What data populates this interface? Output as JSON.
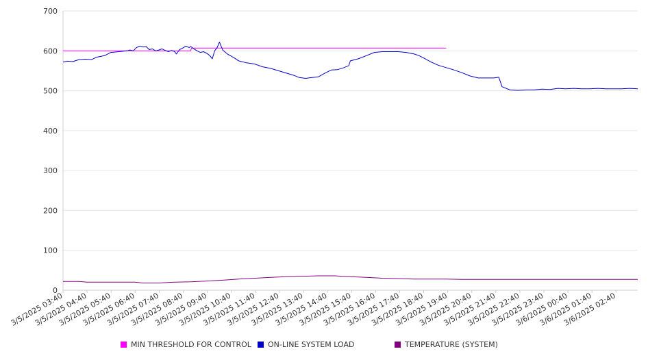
{
  "chart_data": {
    "type": "line",
    "title": "",
    "xlabel": "",
    "ylabel": "",
    "ylim": [
      0,
      700
    ],
    "yticks": [
      0,
      100,
      200,
      300,
      400,
      500,
      600,
      700
    ],
    "grid": true,
    "legend_position": "bottom",
    "x_tick_labels": [
      "3/5/2025 03:40",
      "3/5/2025 04:40",
      "3/5/2025 05:40",
      "3/5/2025 06:40",
      "3/5/2025 07:40",
      "3/5/2025 08:40",
      "3/5/2025 09:40",
      "3/5/2025 10:40",
      "3/5/2025 11:40",
      "3/5/2025 12:40",
      "3/5/2025 13:40",
      "3/5/2025 14:40",
      "3/5/2025 15:40",
      "3/5/2025 16:40",
      "3/5/2025 17:40",
      "3/5/2025 18:40",
      "3/5/2025 19:40",
      "3/5/2025 20:40",
      "3/5/2025 21:40",
      "3/5/2025 22:40",
      "3/5/2025 23:40",
      "3/6/2025 00:40",
      "3/6/2025 01:40",
      "3/6/2025 02:40"
    ],
    "series": [
      {
        "name": "MIN THRESHOLD FOR CONTROL",
        "color": "#ff00ff",
        "points": [
          [
            0,
            600
          ],
          [
            8,
            600
          ],
          [
            8.05,
            607
          ],
          [
            24,
            607
          ]
        ]
      },
      {
        "name": "ON-LINE SYSTEM LOAD",
        "color": "#0000cc",
        "points": [
          [
            0,
            572
          ],
          [
            0.3,
            574
          ],
          [
            0.6,
            573
          ],
          [
            1,
            578
          ],
          [
            1.4,
            579
          ],
          [
            1.8,
            578
          ],
          [
            2.1,
            584
          ],
          [
            2.6,
            588
          ],
          [
            3,
            596
          ],
          [
            3.5,
            598
          ],
          [
            4,
            600
          ],
          [
            4.2,
            602
          ],
          [
            4.4,
            600
          ],
          [
            4.6,
            608
          ],
          [
            4.8,
            612
          ],
          [
            5,
            610
          ],
          [
            5.2,
            611
          ],
          [
            5.4,
            603
          ],
          [
            5.6,
            605
          ],
          [
            5.8,
            600
          ],
          [
            6,
            602
          ],
          [
            6.2,
            605
          ],
          [
            6.4,
            601
          ],
          [
            6.6,
            598
          ],
          [
            6.8,
            601
          ],
          [
            7,
            598
          ],
          [
            7.1,
            592
          ],
          [
            7.3,
            603
          ],
          [
            7.5,
            607
          ],
          [
            7.7,
            612
          ],
          [
            7.9,
            608
          ],
          [
            8,
            611
          ],
          [
            8.2,
            605
          ],
          [
            8.4,
            600
          ],
          [
            8.6,
            596
          ],
          [
            8.8,
            598
          ],
          [
            9,
            594
          ],
          [
            9.2,
            588
          ],
          [
            9.35,
            580
          ],
          [
            9.5,
            600
          ],
          [
            9.65,
            608
          ],
          [
            9.8,
            622
          ],
          [
            10,
            602
          ],
          [
            10.3,
            592
          ],
          [
            10.7,
            583
          ],
          [
            11,
            575
          ],
          [
            11.5,
            570
          ],
          [
            12,
            567
          ],
          [
            12.5,
            560
          ],
          [
            13,
            556
          ],
          [
            13.5,
            550
          ],
          [
            14,
            544
          ],
          [
            14.5,
            538
          ],
          [
            14.8,
            533
          ],
          [
            15.2,
            531
          ],
          [
            15.6,
            533
          ],
          [
            16,
            535
          ],
          [
            16.4,
            544
          ],
          [
            16.8,
            552
          ],
          [
            17.2,
            553
          ],
          [
            17.6,
            558
          ],
          [
            17.9,
            563
          ],
          [
            18,
            575
          ],
          [
            18.5,
            580
          ],
          [
            19,
            588
          ],
          [
            19.5,
            596
          ],
          [
            20,
            598
          ],
          [
            20.5,
            598
          ],
          [
            21,
            598
          ],
          [
            21.5,
            596
          ],
          [
            22,
            592
          ],
          [
            22.3,
            588
          ],
          [
            22.6,
            582
          ],
          [
            23,
            573
          ],
          [
            23.5,
            564
          ],
          [
            24,
            558
          ],
          [
            24.5,
            552
          ],
          [
            25,
            545
          ],
          [
            25.5,
            537
          ],
          [
            26,
            532
          ],
          [
            26.5,
            532
          ],
          [
            27,
            532
          ],
          [
            27.3,
            534
          ],
          [
            27.5,
            510
          ],
          [
            28,
            502
          ],
          [
            28.5,
            501
          ],
          [
            29,
            502
          ],
          [
            29.5,
            502
          ],
          [
            30,
            504
          ],
          [
            30.5,
            503
          ],
          [
            31,
            506
          ],
          [
            31.5,
            505
          ],
          [
            32,
            506
          ],
          [
            32.5,
            505
          ],
          [
            33,
            505
          ],
          [
            33.5,
            506
          ],
          [
            34,
            505
          ],
          [
            34.5,
            505
          ],
          [
            35,
            505
          ],
          [
            35.5,
            506
          ],
          [
            36,
            505
          ]
        ]
      },
      {
        "name": "TEMPERATURE (SYSTEM)",
        "color": "#800080",
        "points": [
          [
            0,
            22
          ],
          [
            1,
            22
          ],
          [
            1.5,
            20
          ],
          [
            3,
            20
          ],
          [
            4.5,
            20
          ],
          [
            5,
            18
          ],
          [
            6,
            18
          ],
          [
            7,
            20
          ],
          [
            8,
            21
          ],
          [
            9,
            23
          ],
          [
            10,
            25
          ],
          [
            11,
            28
          ],
          [
            12,
            30
          ],
          [
            13,
            32
          ],
          [
            14,
            34
          ],
          [
            15,
            35
          ],
          [
            16,
            36
          ],
          [
            17,
            36
          ],
          [
            18,
            34
          ],
          [
            19,
            32
          ],
          [
            20,
            30
          ],
          [
            21,
            29
          ],
          [
            22,
            28
          ],
          [
            23,
            28
          ],
          [
            24,
            28
          ],
          [
            25,
            27
          ],
          [
            26,
            27
          ],
          [
            27,
            27
          ],
          [
            28,
            27
          ],
          [
            29,
            27
          ],
          [
            30,
            27
          ],
          [
            31,
            27
          ],
          [
            32,
            27
          ],
          [
            33,
            27
          ],
          [
            34,
            27
          ],
          [
            35,
            27
          ],
          [
            36,
            27
          ]
        ]
      }
    ]
  }
}
